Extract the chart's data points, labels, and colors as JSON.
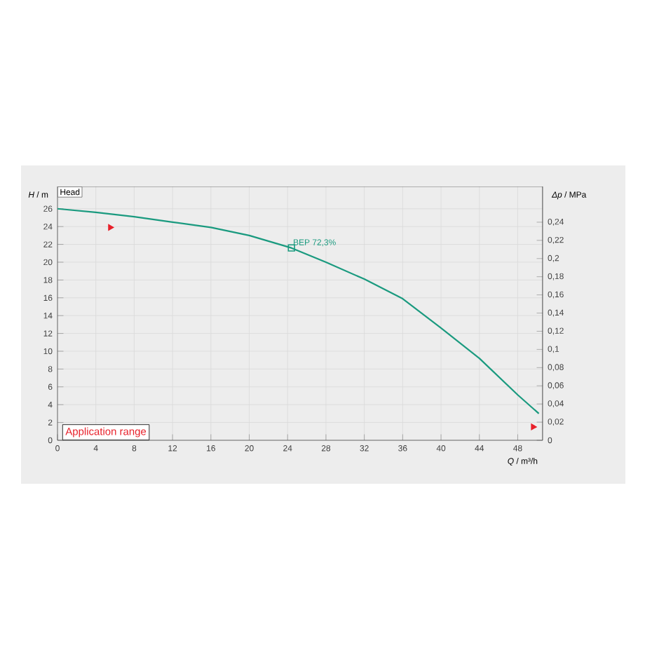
{
  "chart_data": {
    "type": "line",
    "xlabel": "*Q* / m³/h",
    "ylabel": "*H* / m",
    "y2label": "*Δp* / MPa",
    "xlim": [
      0,
      50.6
    ],
    "ylim": [
      0,
      28.5
    ],
    "y2lim": [
      0,
      0.2793
    ],
    "xticks": [
      0,
      4,
      8,
      12,
      16,
      20,
      24,
      28,
      32,
      36,
      40,
      44,
      48
    ],
    "yticks": [
      0,
      2,
      4,
      6,
      8,
      10,
      12,
      14,
      16,
      18,
      20,
      22,
      24,
      26
    ],
    "y2ticks": [
      0,
      {
        "value": 0.02,
        "label": "0,02"
      },
      {
        "value": 0.04,
        "label": "0,04"
      },
      {
        "value": 0.06,
        "label": "0,06"
      },
      {
        "value": 0.08,
        "label": "0,08"
      },
      {
        "value": 0.1,
        "label": "0,1"
      },
      {
        "value": 0.12,
        "label": "0,12"
      },
      {
        "value": 0.14,
        "label": "0,14"
      },
      {
        "value": 0.16,
        "label": "0,16"
      },
      {
        "value": 0.18,
        "label": "0,18"
      },
      {
        "value": 0.2,
        "label": "0,2"
      },
      {
        "value": 0.22,
        "label": "0,22"
      },
      {
        "value": 0.24,
        "label": "0,24"
      }
    ],
    "grid": true,
    "line_style": "solid",
    "series": [
      {
        "color": "#1a9a7f",
        "marker": "none",
        "x": [
          0,
          4,
          8,
          12,
          16,
          20,
          24.4,
          28,
          32,
          36,
          40,
          44,
          48,
          50.2
        ],
        "values": [
          26.0,
          25.6,
          25.1,
          24.5,
          23.9,
          23.0,
          21.6,
          20.0,
          18.1,
          15.9,
          12.6,
          9.2,
          5.1,
          3.0
        ]
      },
      {
        "type": "scatter",
        "color": "#1a9a7f",
        "marker": "square",
        "x": [
          24.4
        ],
        "values": [
          21.6
        ]
      },
      {
        "type": "scatter",
        "color": "#e8202a",
        "marker": "triangle",
        "x": [
          5.5,
          49.6
        ],
        "values": [
          23.9,
          1.5
        ]
      }
    ],
    "annotations": [
      "Head",
      "Application range",
      {
        "text": "BEP  72,3%",
        "x": 24.4,
        "y": 21.6
      }
    ]
  }
}
